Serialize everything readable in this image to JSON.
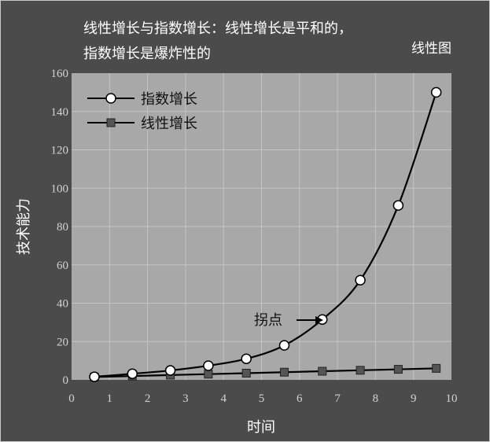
{
  "chart_data": {
    "type": "line",
    "title": "线性增长与指数增长：线性增长是平和的，",
    "subtitle": "指数增长是爆炸性的",
    "corner_label": "线性图",
    "xlabel": "时间",
    "ylabel": "技术能力",
    "xlim": [
      0,
      10
    ],
    "ylim": [
      0,
      160
    ],
    "x_ticks": [
      "0",
      "1",
      "2",
      "3",
      "4",
      "5",
      "6",
      "7",
      "8",
      "9",
      "10"
    ],
    "y_ticks": [
      "0",
      "20",
      "40",
      "60",
      "80",
      "100",
      "120",
      "140",
      "160"
    ],
    "grid": true,
    "legend_position": "top-left",
    "series": [
      {
        "name": "指数增长",
        "marker": "circle",
        "x": [
          0.6,
          1.6,
          2.6,
          3.6,
          4.6,
          5.6,
          6.6,
          7.6,
          8.6,
          9.6
        ],
        "values": [
          1.6,
          3.2,
          4.9,
          7.4,
          11,
          18,
          31.5,
          52,
          91,
          150
        ]
      },
      {
        "name": "线性增长",
        "marker": "square",
        "x": [
          0.6,
          1.6,
          2.6,
          3.6,
          4.6,
          5.6,
          6.6,
          7.6,
          8.6,
          9.6
        ],
        "values": [
          1.5,
          2,
          2.5,
          3,
          3.5,
          4,
          4.5,
          5,
          5.5,
          6
        ]
      }
    ],
    "annotation": {
      "text": "拐点",
      "x": 6.6,
      "y": 31.5
    },
    "colors": {
      "background": "#4b4b4b",
      "plot": "#a8a8a8",
      "line": "#000000",
      "linear_marker": "#555555"
    }
  }
}
